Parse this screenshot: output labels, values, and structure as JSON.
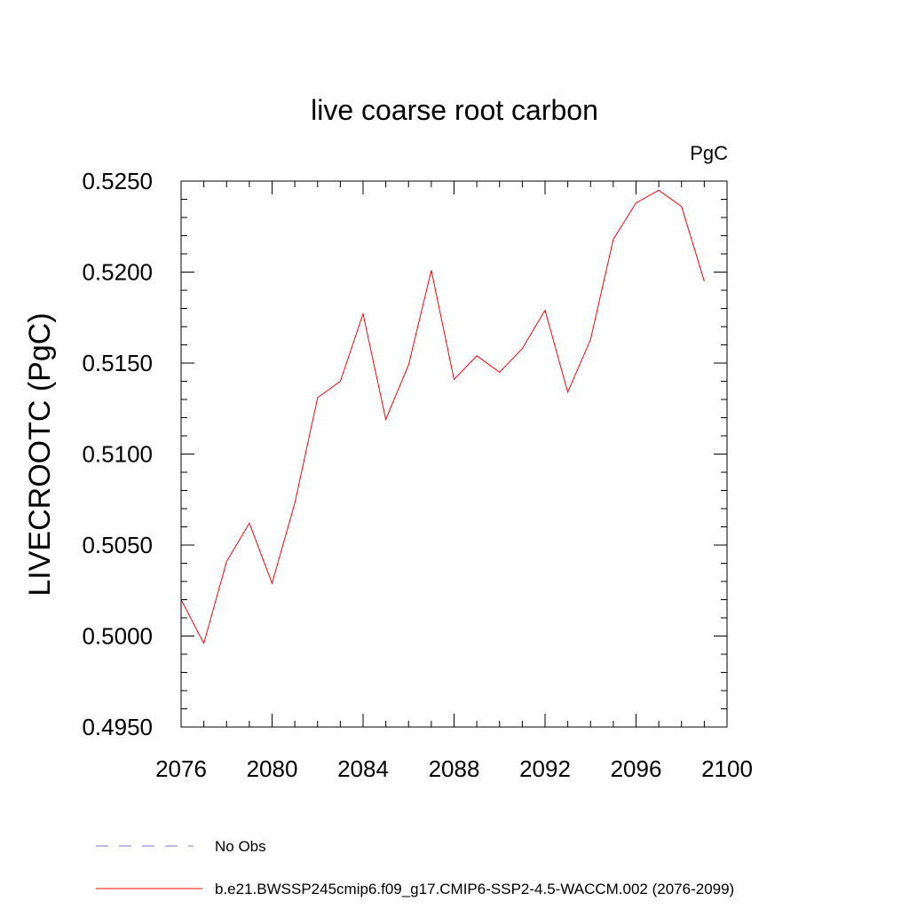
{
  "chart_data": {
    "type": "line",
    "title": "live coarse root carbon",
    "units_label": "PgC",
    "xlabel": "",
    "ylabel": "LIVECROOTC  (PgC)",
    "xlim": [
      2076,
      2100
    ],
    "ylim": [
      0.495,
      0.525
    ],
    "x_major_ticks": [
      2076,
      2080,
      2084,
      2088,
      2092,
      2096,
      2100
    ],
    "x_tick_labels": [
      "2076",
      "2080",
      "2084",
      "2088",
      "2092",
      "2096",
      "2100"
    ],
    "x_minor_step": 1,
    "y_major_ticks": [
      0.495,
      0.5,
      0.505,
      0.51,
      0.515,
      0.52,
      0.525
    ],
    "y_tick_labels": [
      "0.4950",
      "0.5000",
      "0.5050",
      "0.5100",
      "0.5150",
      "0.5200",
      "0.5250"
    ],
    "y_minor_step": 0.001,
    "grid": false,
    "legend_position": "bottom-left",
    "series": [
      {
        "name": "No Obs",
        "color": "#7777cc",
        "style": "dashed",
        "x": [],
        "values": []
      },
      {
        "name": "b.e21.BWSSP245cmip6.f09_g17.CMIP6-SSP2-4.5-WACCM.002 (2076-2099)",
        "color": "#ff0000",
        "style": "solid",
        "x": [
          2076,
          2077,
          2078,
          2079,
          2080,
          2081,
          2082,
          2083,
          2084,
          2085,
          2086,
          2087,
          2088,
          2089,
          2090,
          2091,
          2092,
          2093,
          2094,
          2095,
          2096,
          2097,
          2098,
          2099
        ],
        "values": [
          0.502,
          0.4996,
          0.5041,
          0.5062,
          0.5029,
          0.5073,
          0.5131,
          0.514,
          0.5177,
          0.5119,
          0.5149,
          0.5201,
          0.5141,
          0.5154,
          0.5145,
          0.5158,
          0.5179,
          0.5134,
          0.5163,
          0.5218,
          0.5238,
          0.5245,
          0.5236,
          0.5195
        ]
      }
    ]
  }
}
